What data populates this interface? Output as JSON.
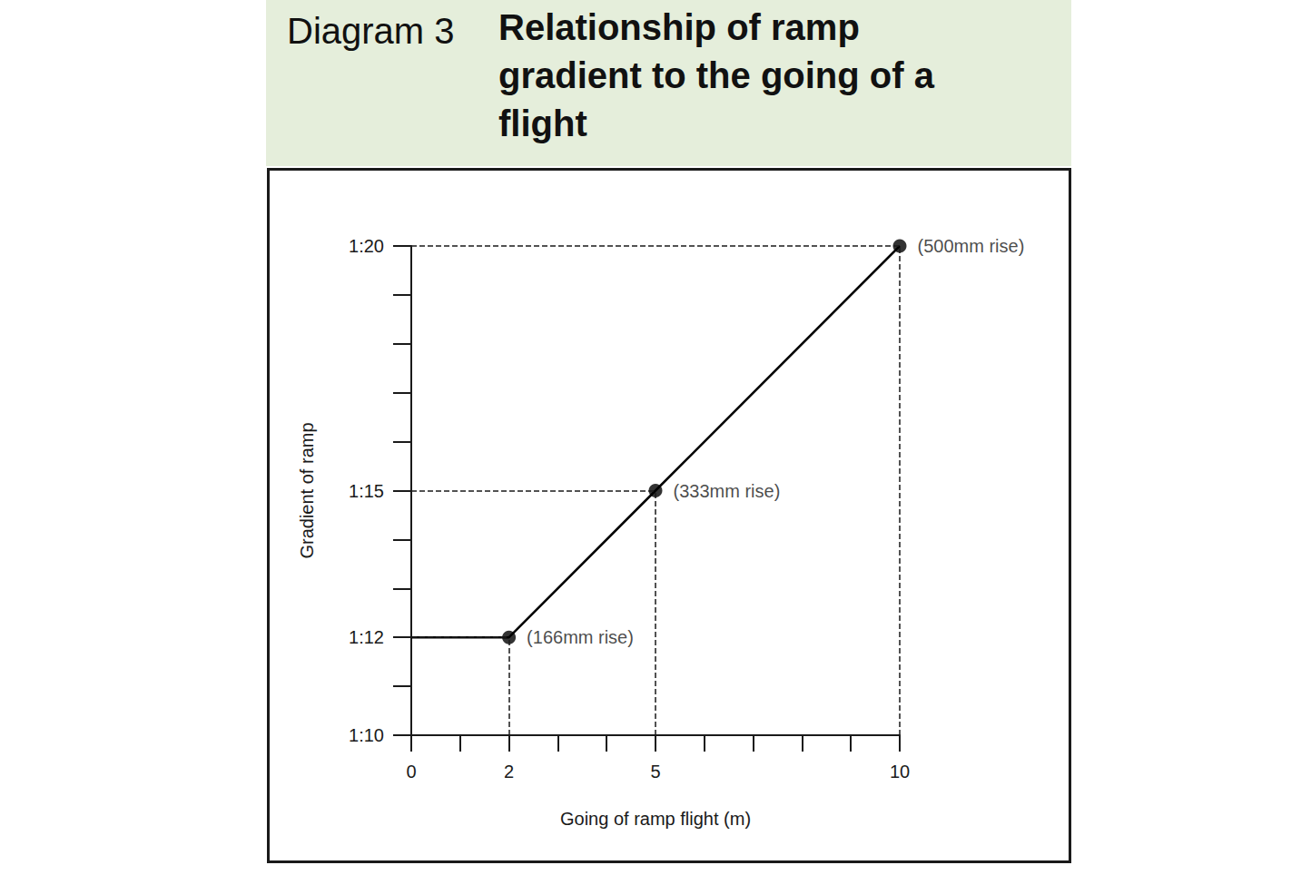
{
  "chart_data": {
    "type": "line",
    "figure_number": "Diagram 3",
    "title": "Relationship of ramp gradient to the going of a flight",
    "x_label": "Going of ramp flight (m)",
    "y_label": "Gradient of ramp",
    "x": [
      0,
      2,
      5,
      10
    ],
    "values": [
      12,
      12,
      15,
      20
    ],
    "color": "#000000",
    "xlim": [
      0,
      10
    ],
    "xticks": [
      0,
      2,
      5,
      10
    ],
    "ylim": [
      10,
      20
    ],
    "yticks": [
      {
        "value": 10,
        "label": "1:10"
      },
      {
        "value": 12,
        "label": "1:12"
      },
      {
        "value": 15,
        "label": "1:15"
      },
      {
        "value": 20,
        "label": "1:20"
      }
    ],
    "annotations": [
      {
        "x": 2,
        "y": 12,
        "text": "(166mm rise)"
      },
      {
        "x": 5,
        "y": 15,
        "text": "(333mm rise)"
      },
      {
        "x": 10,
        "y": 20,
        "text": "(500mm rise)"
      }
    ],
    "marker": "circle",
    "grid": false
  }
}
